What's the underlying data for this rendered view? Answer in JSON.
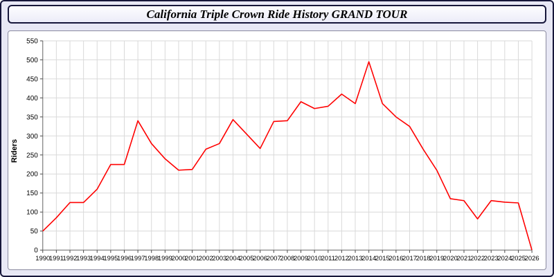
{
  "header": {
    "title": "California Triple Crown Ride History GRAND TOUR"
  },
  "chart_data": {
    "type": "line",
    "title": "California Triple Crown Ride History GRAND TOUR",
    "xlabel": "",
    "ylabel": "Riders",
    "ylim": [
      0,
      550
    ],
    "ytick_step": 50,
    "grid": true,
    "legend": "none",
    "line_color": "#ff0000",
    "x": [
      1990,
      1991,
      1992,
      1993,
      1994,
      1995,
      1996,
      1997,
      1998,
      1999,
      2000,
      2001,
      2002,
      2003,
      2004,
      2005,
      2006,
      2007,
      2008,
      2009,
      2010,
      2011,
      2012,
      2013,
      2014,
      2015,
      2016,
      2017,
      2018,
      2019,
      2020,
      2021,
      2022,
      2023,
      2024,
      2025,
      2026
    ],
    "values": [
      50,
      85,
      125,
      125,
      160,
      225,
      225,
      340,
      280,
      240,
      210,
      212,
      265,
      280,
      343,
      305,
      267,
      338,
      340,
      390,
      372,
      378,
      410,
      385,
      495,
      385,
      350,
      325,
      265,
      210,
      135,
      130,
      82,
      130,
      126,
      124,
      0
    ]
  }
}
